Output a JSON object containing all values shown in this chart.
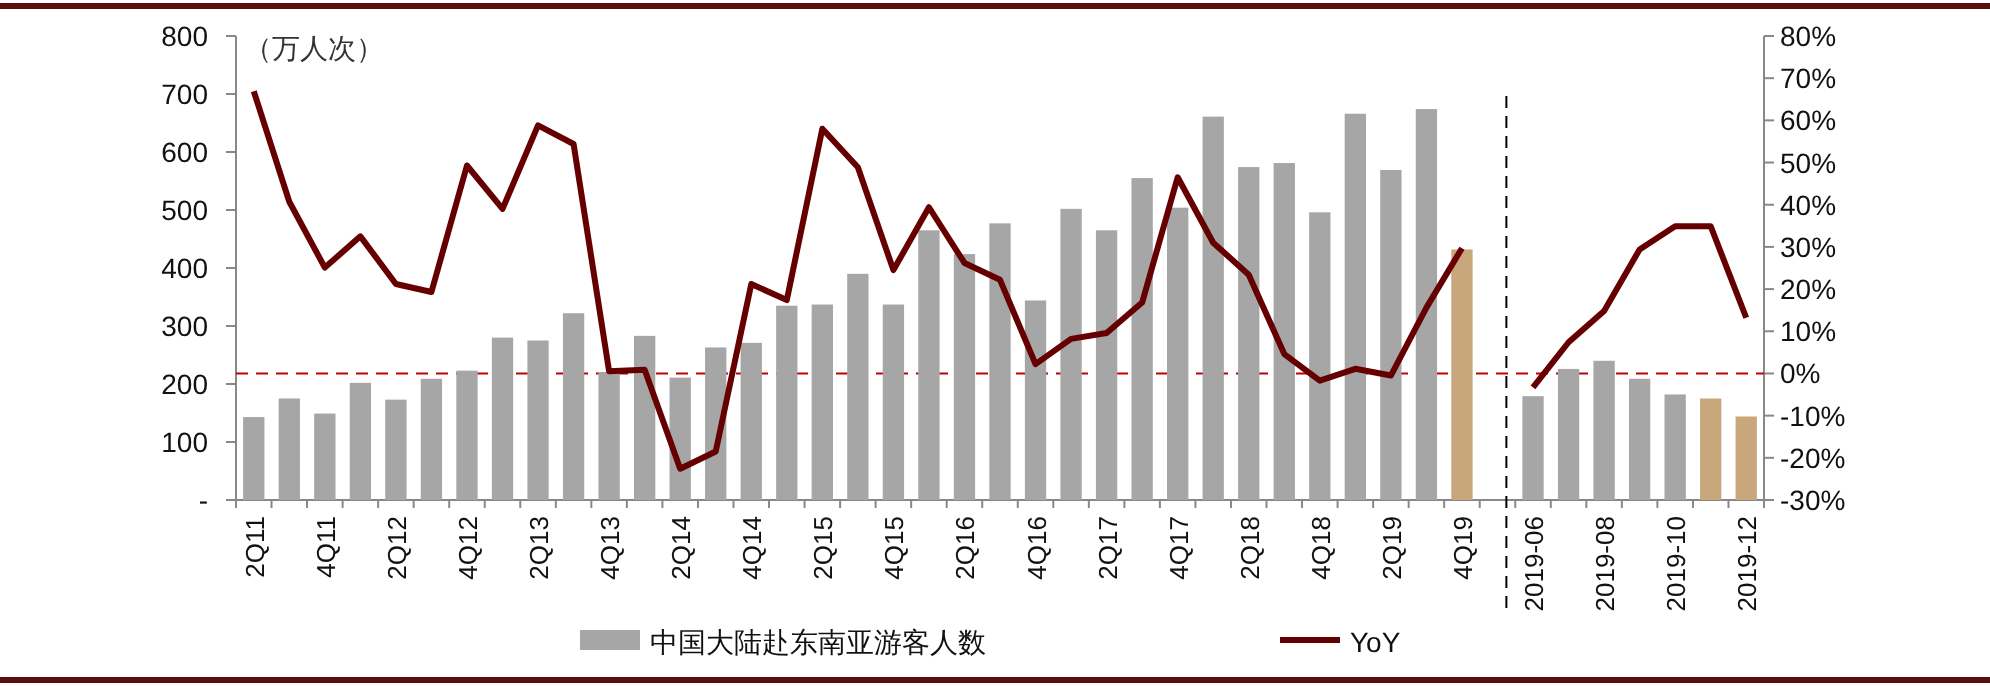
{
  "chart_data": {
    "type": "bar",
    "ylabel": "（万人次）",
    "categories": [
      "2Q11",
      null,
      "4Q11",
      null,
      "2Q12",
      null,
      "4Q12",
      null,
      "2Q13",
      null,
      "4Q13",
      null,
      "2Q14",
      null,
      "4Q14",
      null,
      "2Q15",
      null,
      "4Q15",
      null,
      "2Q16",
      null,
      "4Q16",
      null,
      "2Q17",
      null,
      "4Q17",
      null,
      "2Q18",
      null,
      "4Q18",
      null,
      "2Q19",
      null,
      "4Q19",
      null,
      "2019-06",
      null,
      "2019-08",
      null,
      "2019-10",
      null,
      "2019-12"
    ],
    "series": [
      {
        "name": "中国大陆赴东南亚游客人数",
        "color": "#a6a6a6",
        "colors": [
          "#a6a6a6",
          "#a6a6a6",
          "#a6a6a6",
          "#a6a6a6",
          "#a6a6a6",
          "#a6a6a6",
          "#a6a6a6",
          "#a6a6a6",
          "#a6a6a6",
          "#a6a6a6",
          "#a6a6a6",
          "#a6a6a6",
          "#a6a6a6",
          "#a6a6a6",
          "#a6a6a6",
          "#a6a6a6",
          "#a6a6a6",
          "#a6a6a6",
          "#a6a6a6",
          "#a6a6a6",
          "#a6a6a6",
          "#a6a6a6",
          "#a6a6a6",
          "#a6a6a6",
          "#a6a6a6",
          "#a6a6a6",
          "#a6a6a6",
          "#a6a6a6",
          "#a6a6a6",
          "#a6a6a6",
          "#a6a6a6",
          "#a6a6a6",
          "#a6a6a6",
          "#a6a6a6",
          "#c9a77c",
          null,
          "#a6a6a6",
          "#a6a6a6",
          "#a6a6a6",
          "#a6a6a6",
          "#a6a6a6",
          "#c9a77c",
          "#c9a77c"
        ],
        "values": [
          143,
          175,
          149,
          202,
          173,
          209,
          223,
          280,
          275,
          322,
          220,
          283,
          211,
          263,
          271,
          335,
          337,
          390,
          337,
          465,
          424,
          477,
          344,
          502,
          465,
          555,
          504,
          661,
          574,
          581,
          496,
          666,
          569,
          674,
          432,
          null,
          179,
          226,
          240,
          209,
          182,
          175,
          144
        ]
      },
      {
        "name": "YoY",
        "type": "line",
        "axis": "y2",
        "color": "#660000",
        "values": [
          66.9,
          40.7,
          25.1,
          32.5,
          21.2,
          19.3,
          49.3,
          39,
          58.8,
          54.4,
          0.5,
          0.9,
          -22.6,
          -18.5,
          21.2,
          17.4,
          58,
          48.9,
          24.5,
          39.4,
          26.2,
          22.2,
          2.2,
          8.2,
          9.6,
          16.8,
          46.5,
          31,
          23.4,
          4.6,
          -1.7,
          1.1,
          -0.5,
          15.6,
          29.7,
          null,
          -3.3,
          7.4,
          14.8,
          29.4,
          34.9,
          34.9,
          13.2
        ]
      }
    ],
    "ylim": [
      0,
      800
    ],
    "yticks": [
      {
        "value": 0,
        "label": "-"
      },
      100,
      200,
      300,
      400,
      500,
      600,
      700,
      800
    ],
    "y2lim": [
      -30,
      80
    ],
    "y2ticks": [
      {
        "value": -30,
        "label": "-30%"
      },
      {
        "value": -20,
        "label": "-20%"
      },
      {
        "value": -10,
        "label": "-10%"
      },
      {
        "value": 0,
        "label": "0%"
      },
      {
        "value": 10,
        "label": "10%"
      },
      {
        "value": 20,
        "label": "20%"
      },
      {
        "value": 30,
        "label": "30%"
      },
      {
        "value": 40,
        "label": "40%"
      },
      {
        "value": 50,
        "label": "50%"
      },
      {
        "value": 60,
        "label": "60%"
      },
      {
        "value": 70,
        "label": "70%"
      },
      {
        "value": 80,
        "label": "80%"
      }
    ],
    "ref_lines": [
      {
        "axis": "y2",
        "value": 0,
        "color": "#c00000",
        "line_style": "dashed"
      }
    ],
    "legend": "bottom"
  }
}
